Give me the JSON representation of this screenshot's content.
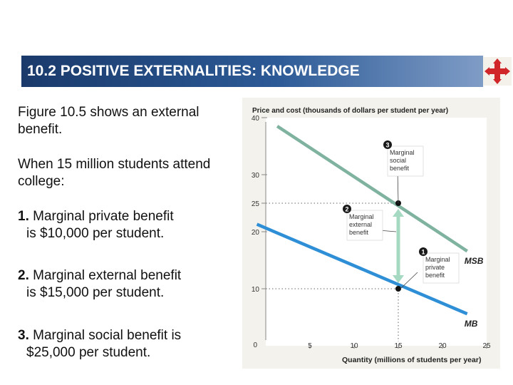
{
  "slide": {
    "title": "10.2 POSITIVE EXTERNALITIES: KNOWLEDGE",
    "logo_icon": "red-cross-arrows-icon",
    "intro1": "Figure 10.5 shows an external benefit.",
    "intro2": "When 15 million students attend college:",
    "points": [
      {
        "num": "1.",
        "text": "Marginal private benefit",
        "text2": "is $10,000 per student."
      },
      {
        "num": "2.",
        "text": "Marginal external benefit",
        "text2": "is $15,000 per student."
      },
      {
        "num": "3.",
        "text": "Marginal social benefit is",
        "text2": "$25,000 per student."
      }
    ]
  },
  "chart_data": {
    "type": "line",
    "ylabel": "Price and cost (thousands of dollars per student per year)",
    "xlabel": "Quantity (millions of students per year)",
    "xlim": [
      0,
      25
    ],
    "ylim": [
      0,
      40
    ],
    "x_ticks": [
      0,
      5,
      10,
      15,
      20,
      25
    ],
    "y_ticks": [
      10,
      20,
      25,
      30,
      40
    ],
    "series": [
      {
        "name": "MSB",
        "color": "#7fb3a0",
        "x": [
          1.3,
          22.8
        ],
        "y": [
          38.5,
          16.6
        ]
      },
      {
        "name": "MB",
        "color": "#2f8fd6",
        "x": [
          -1,
          22.8
        ],
        "y": [
          21.3,
          5.6
        ]
      }
    ],
    "points": [
      {
        "x": 15,
        "y": 25
      },
      {
        "x": 15,
        "y": 10
      }
    ],
    "annotations": [
      {
        "num": "3",
        "text": [
          "Marginal",
          "social",
          "benefit"
        ]
      },
      {
        "num": "2",
        "text": [
          "Marginal",
          "external",
          "benefit"
        ]
      },
      {
        "num": "1",
        "text": [
          "Marginal",
          "private",
          "benefit"
        ]
      }
    ]
  }
}
